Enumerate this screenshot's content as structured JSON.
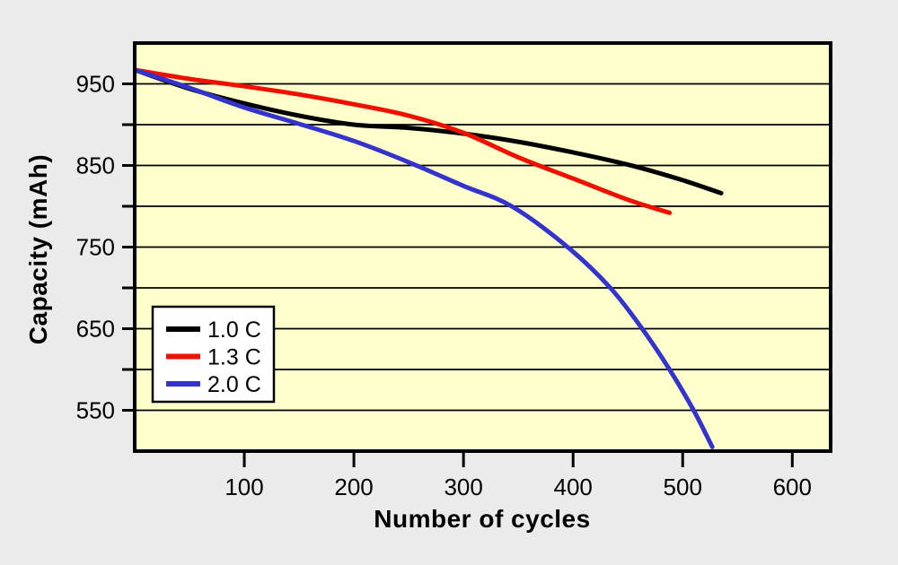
{
  "chart_data": {
    "type": "line",
    "title": "",
    "xlabel": "Number of cycles",
    "ylabel": "Capacity (mAh)",
    "xlim": [
      0,
      635
    ],
    "ylim": [
      500,
      1000
    ],
    "x_ticks": [
      100,
      200,
      300,
      400,
      500,
      600
    ],
    "y_gridlines": [
      550,
      600,
      650,
      700,
      750,
      800,
      850,
      900,
      950
    ],
    "y_labeled_ticks": [
      550,
      650,
      750,
      850,
      950
    ],
    "grid": "horizontal-only",
    "legend_position": "inside-lower-left",
    "plot_bg_color": "#FFFFCC",
    "outer_bg_color": "#EBEBEB",
    "axis_color": "#000000",
    "series": [
      {
        "name": "1.0 C",
        "color": "#000000",
        "points": [
          [
            0,
            967
          ],
          [
            50,
            944
          ],
          [
            100,
            926
          ],
          [
            150,
            911
          ],
          [
            200,
            900
          ],
          [
            250,
            896
          ],
          [
            300,
            889
          ],
          [
            350,
            879
          ],
          [
            400,
            866
          ],
          [
            450,
            851
          ],
          [
            500,
            832
          ],
          [
            535,
            816
          ]
        ]
      },
      {
        "name": "1.3 C",
        "color": "#EE1100",
        "points": [
          [
            0,
            967
          ],
          [
            50,
            956
          ],
          [
            100,
            947
          ],
          [
            150,
            937
          ],
          [
            200,
            925
          ],
          [
            250,
            911
          ],
          [
            300,
            890
          ],
          [
            350,
            860
          ],
          [
            400,
            834
          ],
          [
            450,
            808
          ],
          [
            488,
            792
          ]
        ]
      },
      {
        "name": "2.0 C",
        "color": "#3434CC",
        "points": [
          [
            0,
            967
          ],
          [
            50,
            945
          ],
          [
            100,
            921
          ],
          [
            150,
            901
          ],
          [
            200,
            880
          ],
          [
            250,
            854
          ],
          [
            300,
            825
          ],
          [
            344,
            800
          ],
          [
            395,
            750
          ],
          [
            434,
            700
          ],
          [
            463,
            650
          ],
          [
            488,
            600
          ],
          [
            510,
            550
          ],
          [
            527,
            505
          ]
        ]
      }
    ]
  }
}
